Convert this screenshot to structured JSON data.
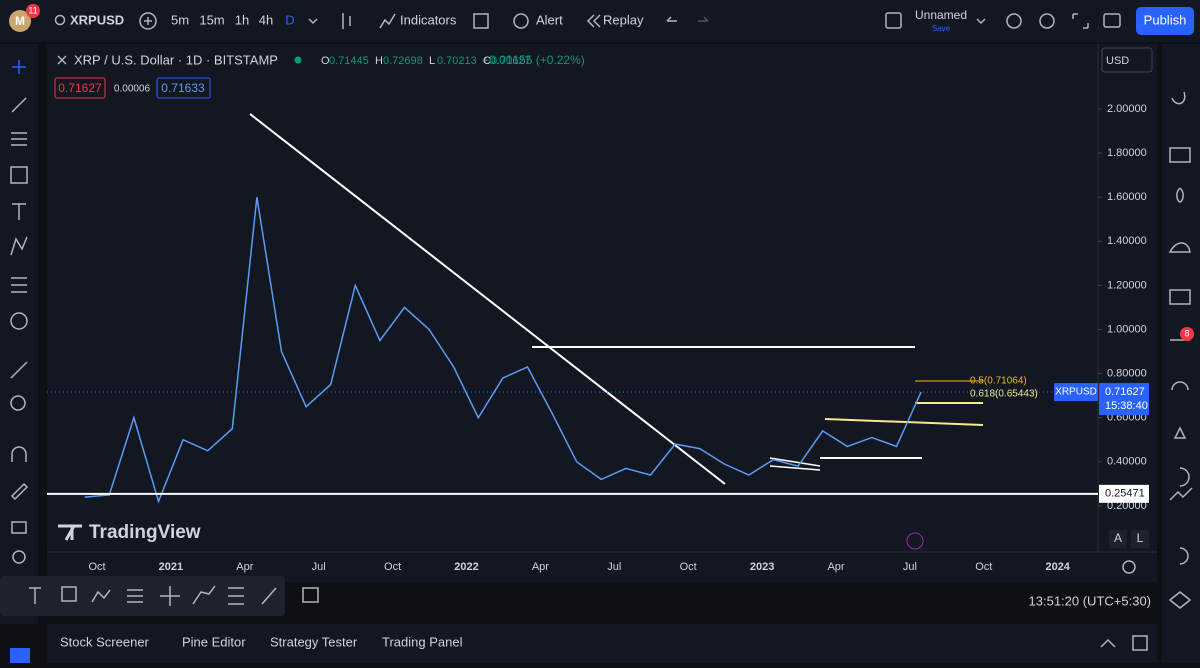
{
  "ui": {
    "symbol": "XRPUSD",
    "avatar": "M",
    "avatar_badge": "11",
    "intervals": [
      "5m",
      "15m",
      "1h",
      "4h",
      "D"
    ],
    "toolbar": [
      "Indicators",
      "Alert",
      "Replay"
    ],
    "layout_name": "Unnamed",
    "layout_save": "Save",
    "publish": "Publish",
    "currency": "USD",
    "legend_title": "XRP / U.S. Dollar · 1D · BITSTAMP",
    "ohlc": [
      {
        "k": "O",
        "v": "0.71445"
      },
      {
        "k": "H",
        "v": "0.72698"
      },
      {
        "k": "L",
        "v": "0.70213"
      },
      {
        "k": "C",
        "v": "0.71627"
      }
    ],
    "change": "+0.00155 (+0.22%)",
    "bid": "0.71627",
    "spread": "0.00006",
    "ask": "0.71633",
    "price_tag_symbol": "XRPUSD",
    "countdown": "15:38:40",
    "fib_labels": [
      "0.5(0.71064)",
      "0.618(0.65443)"
    ],
    "watermark": "TradingView",
    "scale_buttons": [
      "A",
      "L"
    ],
    "clock": "13:51:20 (UTC+5:30)",
    "bottom_tabs": [
      "Stock Screener",
      "Pine Editor",
      "Strategy Tester",
      "Trading Panel"
    ],
    "side_badge": "8"
  },
  "chart_data": {
    "type": "line",
    "color": "#5b9cf6",
    "x": [
      "2020-09",
      "2020-10",
      "2020-11",
      "2020-12",
      "2021-01",
      "2021-02",
      "2021-03",
      "2021-04",
      "2021-05",
      "2021-06",
      "2021-07",
      "2021-08",
      "2021-09",
      "2021-10",
      "2021-11",
      "2021-12",
      "2022-01",
      "2022-02",
      "2022-03",
      "2022-04",
      "2022-05",
      "2022-06",
      "2022-07",
      "2022-08",
      "2022-09",
      "2022-10",
      "2022-11",
      "2022-12",
      "2023-01",
      "2023-02",
      "2023-03",
      "2023-04",
      "2023-05",
      "2023-06",
      "2023-07"
    ],
    "values": [
      0.24,
      0.25,
      0.6,
      0.22,
      0.5,
      0.45,
      0.55,
      1.6,
      0.9,
      0.65,
      0.75,
      1.2,
      0.95,
      1.1,
      1.0,
      0.83,
      0.6,
      0.78,
      0.83,
      0.62,
      0.4,
      0.32,
      0.37,
      0.34,
      0.48,
      0.46,
      0.39,
      0.34,
      0.41,
      0.38,
      0.54,
      0.47,
      0.51,
      0.47,
      0.71627
    ],
    "ylim": [
      0,
      2.29
    ],
    "yticks": [
      {
        "value": 0.2,
        "label": "0.20000"
      },
      {
        "value": 0.4,
        "label": "0.40000"
      },
      {
        "value": 0.6,
        "label": "0.60000"
      },
      {
        "value": 0.8,
        "label": "0.80000"
      },
      {
        "value": 1.0,
        "label": "1.00000"
      },
      {
        "value": 1.2,
        "label": "1.20000"
      },
      {
        "value": 1.4,
        "label": "1.40000"
      },
      {
        "value": 1.6,
        "label": "1.60000"
      },
      {
        "value": 1.8,
        "label": "1.80000"
      },
      {
        "value": 2.0,
        "label": "2.00000"
      }
    ],
    "xtick_labels": [
      "Oct",
      "2021",
      "Apr",
      "Jul",
      "Oct",
      "2022",
      "Apr",
      "Jul",
      "Oct",
      "2023",
      "Apr",
      "Jul",
      "Oct",
      "2024"
    ],
    "support_level": 0.25471
  }
}
